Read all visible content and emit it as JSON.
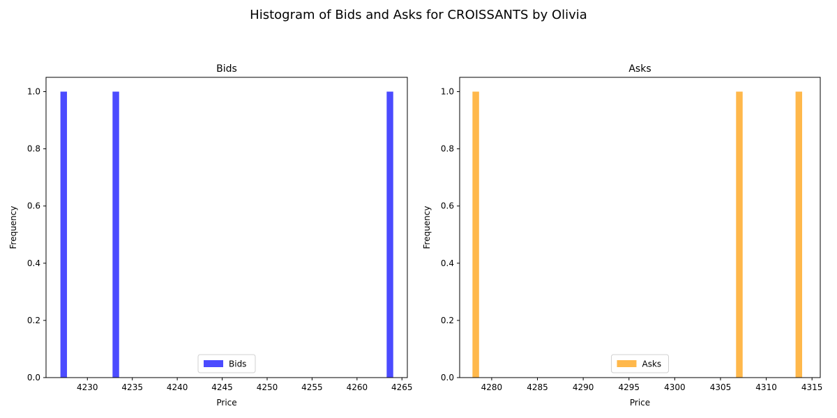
{
  "figure": {
    "suptitle": "Histogram of Bids and Asks for CROISSANTS by Olivia"
  },
  "chart_data": [
    {
      "type": "bar",
      "title": "Bids",
      "xlabel": "Price",
      "ylabel": "Frequency",
      "xlim": [
        4225.4,
        4265.6
      ],
      "ylim": [
        0,
        1.05
      ],
      "xticks": [
        4230,
        4235,
        4240,
        4245,
        4250,
        4255,
        4260,
        4265
      ],
      "yticks": [
        0.0,
        0.2,
        0.4,
        0.6,
        0.8,
        1.0
      ],
      "bar_width": 0.73,
      "bars": [
        {
          "x_left": 4227.0,
          "value": 1
        },
        {
          "x_left": 4232.8,
          "value": 1
        },
        {
          "x_left": 4263.3,
          "value": 1
        }
      ],
      "series": [
        {
          "name": "Bids",
          "color": "#4b4bff"
        }
      ],
      "legend_position": "lower center",
      "grid": false
    },
    {
      "type": "bar",
      "title": "Asks",
      "xlabel": "Price",
      "ylabel": "Frequency",
      "xlim": [
        4276.5,
        4315.9
      ],
      "ylim": [
        0,
        1.05
      ],
      "xticks": [
        4280,
        4285,
        4290,
        4295,
        4300,
        4305,
        4310,
        4315
      ],
      "yticks": [
        0.0,
        0.2,
        0.4,
        0.6,
        0.8,
        1.0
      ],
      "bar_width": 0.72,
      "bars": [
        {
          "x_left": 4277.9,
          "value": 1
        },
        {
          "x_left": 4306.7,
          "value": 1
        },
        {
          "x_left": 4313.2,
          "value": 1
        }
      ],
      "series": [
        {
          "name": "Asks",
          "color": "#ffb84b"
        }
      ],
      "legend_position": "lower center",
      "grid": false
    }
  ]
}
